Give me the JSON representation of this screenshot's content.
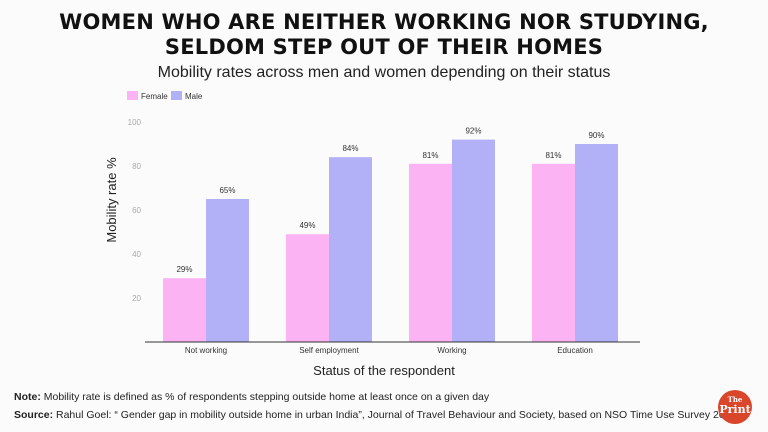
{
  "chart_data": {
    "type": "bar",
    "title": "WOMEN WHO ARE NEITHER WORKING NOR STUDYING, SELDOM STEP OUT OF THEIR HOMES",
    "title_lines": [
      "WOMEN WHO ARE NEITHER WORKING NOR STUDYING,",
      "SELDOM STEP OUT OF THEIR HOMES"
    ],
    "subtitle": "Mobility rates across men and women depending on their status",
    "xlabel": "Status of the respondent",
    "ylabel": "Mobility rate %",
    "ylim": [
      0,
      100
    ],
    "yticks": [
      20,
      40,
      60,
      80,
      100
    ],
    "categories": [
      "Not working",
      "Self employment",
      "Working",
      "Education"
    ],
    "series": [
      {
        "name": "Female",
        "color": "#fbb3f3",
        "values": [
          29,
          49,
          81,
          81
        ],
        "labels": [
          "29%",
          "49%",
          "81%",
          "81%"
        ]
      },
      {
        "name": "Male",
        "color": "#b2b1f7",
        "values": [
          65,
          84,
          92,
          90
        ],
        "labels": [
          "65%",
          "84%",
          "92%",
          "90%"
        ]
      }
    ],
    "legend": "top-left",
    "grid": false
  },
  "footer": {
    "note_label": "Note:",
    "note_text": " Mobility rate is defined as % of respondents stepping outside home at least once on a given day",
    "source_label": "Source:",
    "source_text": " Rahul Goel: “ Gender gap in mobility outside home in urban India”, Journal of Travel Behaviour and Society, based on NSO Time Use Survey 2019"
  },
  "logo": {
    "top": "The",
    "bottom": "Print"
  }
}
